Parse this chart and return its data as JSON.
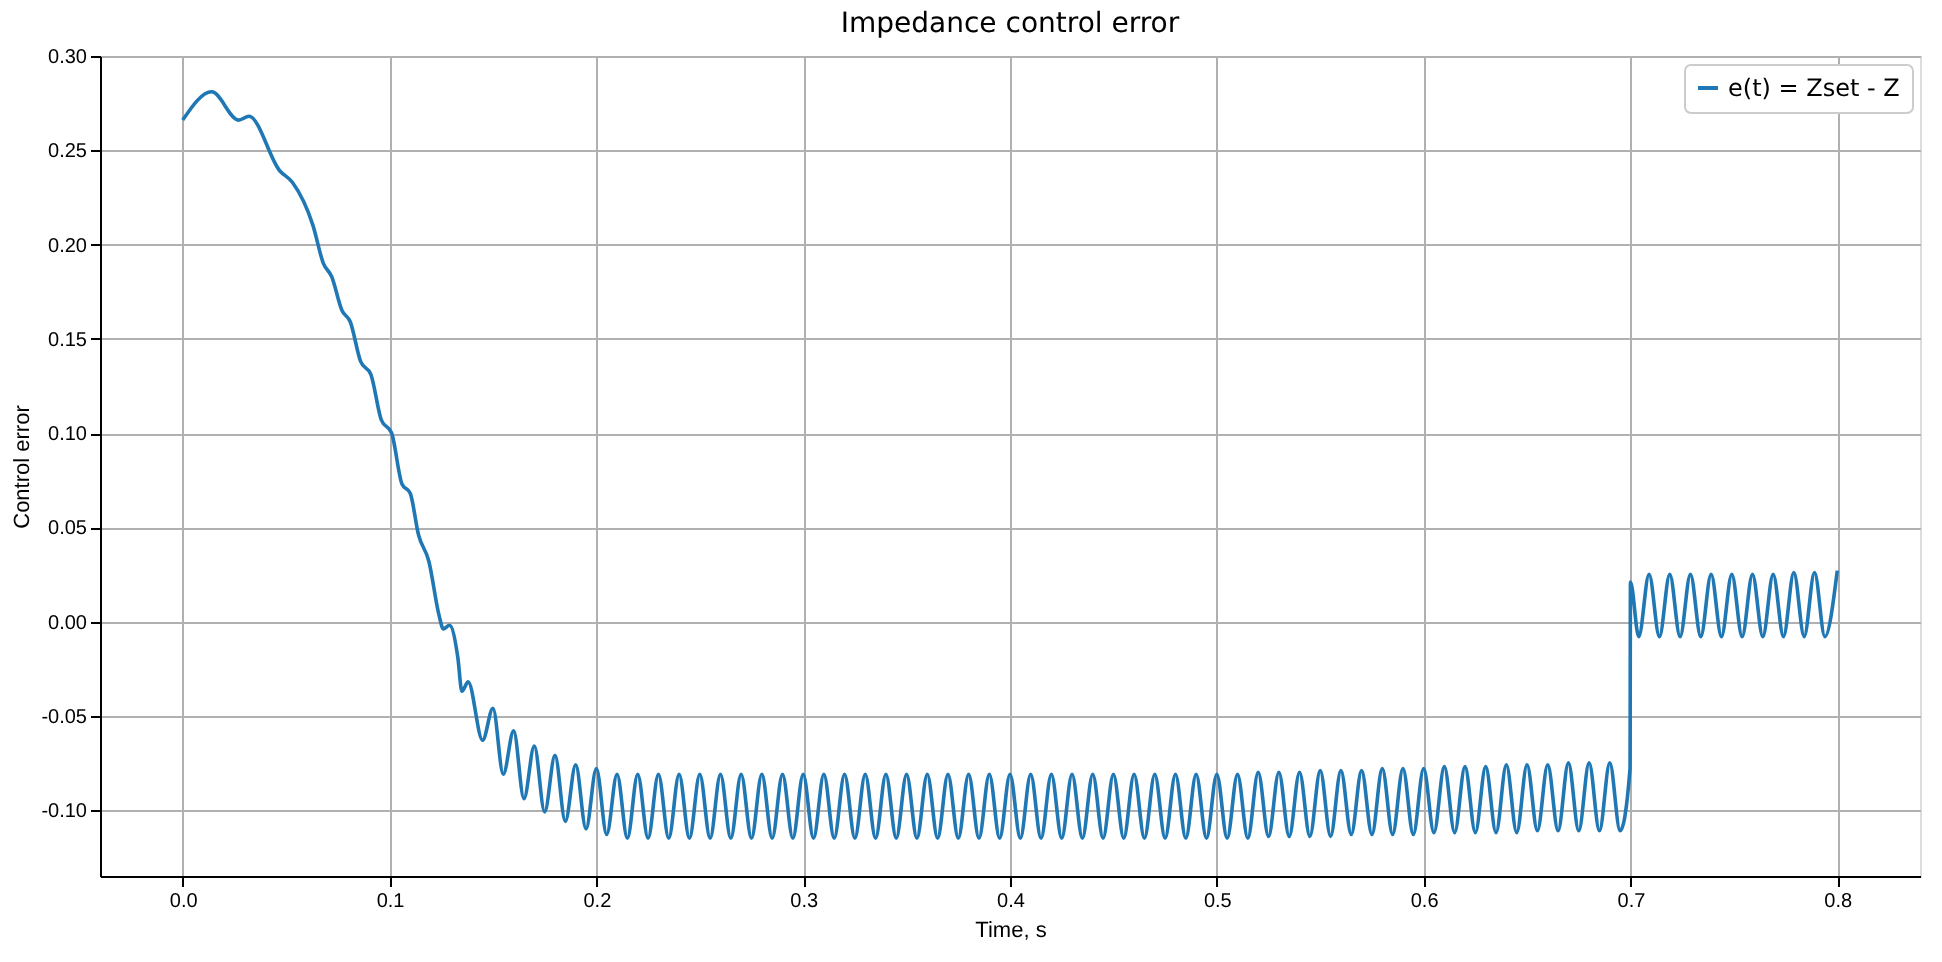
{
  "chart_data": {
    "type": "line",
    "title": "Impedance control error",
    "xlabel": "Time, s",
    "ylabel": "Control error",
    "xlim": [
      -0.04,
      0.84
    ],
    "ylim": [
      -0.135,
      0.3
    ],
    "xticks": [
      {
        "value": 0,
        "label": "0.0"
      },
      0.1,
      0.2,
      0.3,
      0.4,
      0.5,
      0.6,
      0.7,
      0.8
    ],
    "yticks": [
      {
        "value": -0.1,
        "label": "-0.10"
      },
      {
        "value": -0.05,
        "label": "-0.05"
      },
      {
        "value": 0,
        "label": "0.00"
      },
      {
        "value": 0.05,
        "label": "0.05"
      },
      {
        "value": 0.1,
        "label": "0.10"
      },
      {
        "value": 0.15,
        "label": "0.15"
      },
      {
        "value": 0.2,
        "label": "0.20"
      },
      {
        "value": 0.25,
        "label": "0.25"
      },
      {
        "value": 0.3,
        "label": "0.30"
      }
    ],
    "grid": true,
    "legend": "top right",
    "line_style": "solid",
    "marker": "none",
    "series": [
      {
        "name": "e(t) = Zset - Z",
        "color": "#1f77b4",
        "x": [
          0.0,
          0.014,
          0.027,
          0.032,
          0.047,
          0.053,
          0.063,
          0.068,
          0.072,
          0.077,
          0.081,
          0.086,
          0.091,
          0.096,
          0.101,
          0.106,
          0.11,
          0.114,
          0.119,
          0.124,
          0.126,
          0.129,
          0.133,
          0.135,
          0.138,
          0.145,
          0.15,
          0.155,
          0.16,
          0.165,
          0.17,
          0.175,
          0.18,
          0.185,
          0.19,
          0.195,
          0.2,
          0.205,
          0.21,
          0.215,
          0.22,
          0.225,
          0.23,
          0.235,
          0.24,
          0.245,
          0.25,
          0.255,
          0.26,
          0.265,
          0.27,
          0.275,
          0.28,
          0.285,
          0.29,
          0.295,
          0.3,
          0.305,
          0.31,
          0.315,
          0.32,
          0.325,
          0.33,
          0.335,
          0.34,
          0.345,
          0.35,
          0.355,
          0.36,
          0.365,
          0.37,
          0.375,
          0.38,
          0.385,
          0.39,
          0.395,
          0.4,
          0.405,
          0.41,
          0.415,
          0.42,
          0.425,
          0.43,
          0.435,
          0.44,
          0.445,
          0.45,
          0.455,
          0.46,
          0.465,
          0.47,
          0.475,
          0.48,
          0.485,
          0.49,
          0.495,
          0.5,
          0.505,
          0.51,
          0.515,
          0.52,
          0.525,
          0.53,
          0.535,
          0.54,
          0.545,
          0.55,
          0.555,
          0.56,
          0.565,
          0.57,
          0.575,
          0.58,
          0.585,
          0.59,
          0.595,
          0.6,
          0.605,
          0.61,
          0.615,
          0.62,
          0.625,
          0.63,
          0.635,
          0.64,
          0.645,
          0.65,
          0.655,
          0.66,
          0.665,
          0.67,
          0.675,
          0.68,
          0.685,
          0.69,
          0.695,
          0.6998,
          0.7,
          0.704,
          0.709,
          0.714,
          0.719,
          0.724,
          0.729,
          0.734,
          0.739,
          0.744,
          0.749,
          0.754,
          0.759,
          0.764,
          0.769,
          0.774,
          0.779,
          0.784,
          0.789,
          0.794,
          0.8
        ],
        "values": [
          0.266,
          0.281,
          0.266,
          0.268,
          0.239,
          0.233,
          0.21,
          0.19,
          0.183,
          0.165,
          0.159,
          0.138,
          0.131,
          0.107,
          0.1,
          0.073,
          0.068,
          0.046,
          0.032,
          0.003,
          -0.004,
          -0.002,
          -0.019,
          -0.037,
          -0.032,
          -0.063,
          -0.046,
          -0.081,
          -0.058,
          -0.094,
          -0.066,
          -0.101,
          -0.071,
          -0.106,
          -0.076,
          -0.11,
          -0.078,
          -0.113,
          -0.081,
          -0.115,
          -0.081,
          -0.115,
          -0.081,
          -0.115,
          -0.081,
          -0.115,
          -0.081,
          -0.115,
          -0.081,
          -0.115,
          -0.081,
          -0.115,
          -0.081,
          -0.115,
          -0.081,
          -0.115,
          -0.081,
          -0.115,
          -0.081,
          -0.115,
          -0.081,
          -0.115,
          -0.081,
          -0.115,
          -0.081,
          -0.115,
          -0.081,
          -0.115,
          -0.081,
          -0.115,
          -0.081,
          -0.115,
          -0.081,
          -0.115,
          -0.081,
          -0.115,
          -0.081,
          -0.115,
          -0.081,
          -0.115,
          -0.081,
          -0.115,
          -0.081,
          -0.115,
          -0.081,
          -0.115,
          -0.081,
          -0.115,
          -0.081,
          -0.115,
          -0.081,
          -0.115,
          -0.081,
          -0.115,
          -0.081,
          -0.115,
          -0.081,
          -0.115,
          -0.081,
          -0.115,
          -0.08,
          -0.114,
          -0.08,
          -0.114,
          -0.08,
          -0.114,
          -0.079,
          -0.114,
          -0.079,
          -0.113,
          -0.079,
          -0.113,
          -0.078,
          -0.113,
          -0.078,
          -0.113,
          -0.078,
          -0.112,
          -0.077,
          -0.112,
          -0.077,
          -0.112,
          -0.077,
          -0.112,
          -0.076,
          -0.112,
          -0.076,
          -0.111,
          -0.076,
          -0.111,
          -0.075,
          -0.111,
          -0.075,
          -0.111,
          -0.075,
          -0.111,
          -0.078,
          0.021,
          -0.008,
          0.025,
          -0.008,
          0.025,
          -0.008,
          0.025,
          -0.008,
          0.025,
          -0.008,
          0.025,
          -0.008,
          0.025,
          -0.008,
          0.025,
          -0.008,
          0.026,
          -0.008,
          0.026,
          -0.008,
          0.027
        ]
      }
    ]
  }
}
